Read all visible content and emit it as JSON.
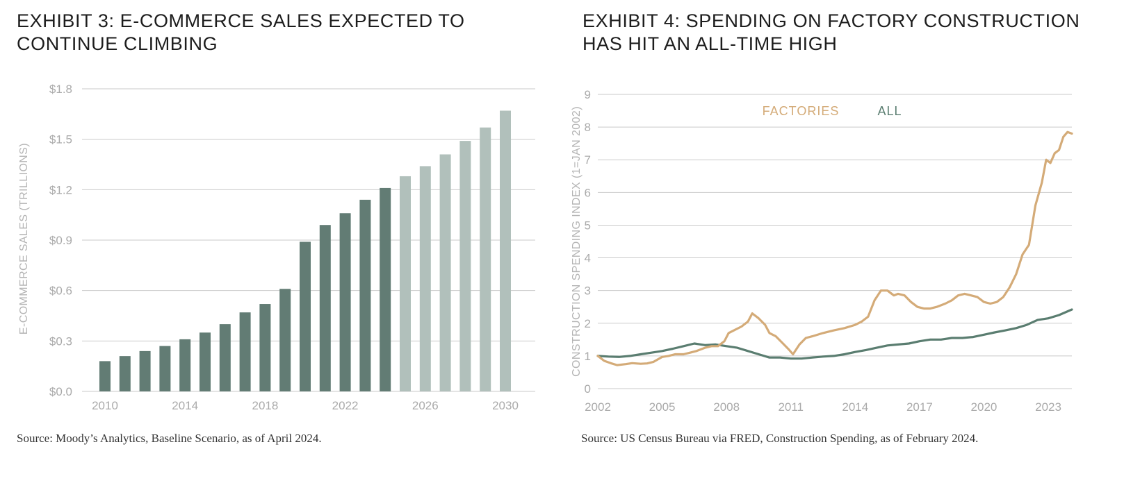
{
  "exhibit3": {
    "title": "EXHIBIT 3: E-COMMERCE SALES EXPECTED TO CONTINUE CLIMBING",
    "source": "Source: Moody’s Analytics, Baseline Scenario, as of April 2024.",
    "chart_data": {
      "type": "bar",
      "ylabel": "E-COMMERCE SALES (TRILLIONS)",
      "ylim": [
        0,
        1.8
      ],
      "yticks": [
        "$0.0",
        "$0.3",
        "$0.6",
        "$0.9",
        "$1.2",
        "$1.5",
        "$1.8"
      ],
      "ytick_values": [
        0,
        0.3,
        0.6,
        0.9,
        1.2,
        1.5,
        1.8
      ],
      "xticks": [
        "2010",
        "2014",
        "2018",
        "2022",
        "2026",
        "2030"
      ],
      "grid": true,
      "categories": [
        "2010",
        "2011",
        "2012",
        "2013",
        "2014",
        "2015",
        "2016",
        "2017",
        "2018",
        "2019",
        "2020",
        "2021",
        "2022",
        "2023",
        "2024",
        "2025",
        "2026",
        "2027",
        "2028",
        "2029",
        "2030"
      ],
      "values": [
        0.18,
        0.21,
        0.24,
        0.27,
        0.31,
        0.35,
        0.4,
        0.47,
        0.52,
        0.61,
        0.89,
        0.99,
        1.06,
        1.14,
        1.21,
        1.28,
        1.34,
        1.41,
        1.49,
        1.57,
        1.67
      ],
      "forecast_from": "2025",
      "colors": {
        "actual": "#627c74",
        "forecast": "#b1c0bb",
        "grid": "#c9c9c9"
      }
    }
  },
  "exhibit4": {
    "title": "EXHIBIT 4: SPENDING ON FACTORY CONSTRUCTION HAS HIT AN ALL-TIME HIGH",
    "source": "Source: US Census Bureau via FRED, Construction Spending, as of February 2024.",
    "chart_data": {
      "type": "line",
      "ylabel": "CONSTRUCTION SPENDING INDEX (1=JAN 2002)",
      "ylim": [
        0,
        9
      ],
      "yticks": [
        "0",
        "1",
        "2",
        "3",
        "4",
        "5",
        "6",
        "7",
        "8",
        "9"
      ],
      "ytick_values": [
        0,
        1,
        2,
        3,
        4,
        5,
        6,
        7,
        8,
        9
      ],
      "xlim": [
        2002,
        2024.1
      ],
      "xticks": [
        "2002",
        "2005",
        "2008",
        "2011",
        "2014",
        "2017",
        "2020",
        "2023"
      ],
      "xtick_values": [
        2002,
        2005,
        2008,
        2011,
        2014,
        2017,
        2020,
        2023
      ],
      "grid": true,
      "legend_position": "top-center",
      "series": [
        {
          "name": "FACTORIES",
          "color": "#d4ab78",
          "x": [
            2002.0,
            2002.3,
            2002.6,
            2002.9,
            2003.3,
            2003.6,
            2004.0,
            2004.3,
            2004.6,
            2005.0,
            2005.3,
            2005.6,
            2006.0,
            2006.3,
            2006.6,
            2007.0,
            2007.3,
            2007.6,
            2007.9,
            2008.1,
            2008.4,
            2008.7,
            2009.0,
            2009.2,
            2009.5,
            2009.8,
            2010.0,
            2010.3,
            2010.6,
            2010.9,
            2011.1,
            2011.4,
            2011.7,
            2012.0,
            2012.5,
            2013.0,
            2013.5,
            2014.0,
            2014.3,
            2014.6,
            2014.9,
            2015.2,
            2015.5,
            2015.8,
            2016.0,
            2016.3,
            2016.6,
            2016.9,
            2017.2,
            2017.5,
            2017.8,
            2018.2,
            2018.5,
            2018.8,
            2019.1,
            2019.4,
            2019.7,
            2020.0,
            2020.3,
            2020.6,
            2020.9,
            2021.2,
            2021.5,
            2021.8,
            2022.1,
            2022.4,
            2022.7,
            2022.9,
            2023.1,
            2023.3,
            2023.5,
            2023.7,
            2023.9,
            2024.1
          ],
          "y": [
            1.0,
            0.85,
            0.78,
            0.72,
            0.75,
            0.78,
            0.76,
            0.77,
            0.82,
            0.97,
            1.0,
            1.05,
            1.05,
            1.1,
            1.15,
            1.25,
            1.3,
            1.3,
            1.45,
            1.7,
            1.8,
            1.9,
            2.05,
            2.3,
            2.15,
            1.95,
            1.7,
            1.6,
            1.4,
            1.2,
            1.05,
            1.35,
            1.55,
            1.6,
            1.7,
            1.78,
            1.85,
            1.95,
            2.05,
            2.2,
            2.7,
            3.0,
            3.0,
            2.85,
            2.9,
            2.85,
            2.65,
            2.5,
            2.45,
            2.45,
            2.5,
            2.6,
            2.7,
            2.85,
            2.9,
            2.85,
            2.8,
            2.65,
            2.6,
            2.65,
            2.8,
            3.1,
            3.5,
            4.1,
            4.4,
            5.6,
            6.3,
            7.0,
            6.9,
            7.2,
            7.3,
            7.7,
            7.85,
            7.8
          ]
        },
        {
          "name": "ALL",
          "color": "#5a7d70",
          "x": [
            2002.0,
            2002.5,
            2003.0,
            2003.5,
            2004.0,
            2004.5,
            2005.0,
            2005.5,
            2006.0,
            2006.5,
            2007.0,
            2007.5,
            2008.0,
            2008.5,
            2009.0,
            2009.5,
            2010.0,
            2010.5,
            2011.0,
            2011.5,
            2012.0,
            2012.5,
            2013.0,
            2013.5,
            2014.0,
            2014.5,
            2015.0,
            2015.5,
            2016.0,
            2016.5,
            2017.0,
            2017.5,
            2018.0,
            2018.5,
            2019.0,
            2019.5,
            2020.0,
            2020.5,
            2021.0,
            2021.5,
            2022.0,
            2022.5,
            2023.0,
            2023.5,
            2024.1
          ],
          "y": [
            1.0,
            0.98,
            0.97,
            1.0,
            1.05,
            1.1,
            1.15,
            1.22,
            1.3,
            1.38,
            1.33,
            1.35,
            1.3,
            1.25,
            1.15,
            1.05,
            0.95,
            0.95,
            0.92,
            0.92,
            0.95,
            0.98,
            1.0,
            1.05,
            1.12,
            1.18,
            1.25,
            1.32,
            1.35,
            1.38,
            1.45,
            1.5,
            1.5,
            1.55,
            1.55,
            1.58,
            1.65,
            1.72,
            1.78,
            1.85,
            1.95,
            2.1,
            2.15,
            2.25,
            2.42
          ]
        }
      ]
    }
  }
}
